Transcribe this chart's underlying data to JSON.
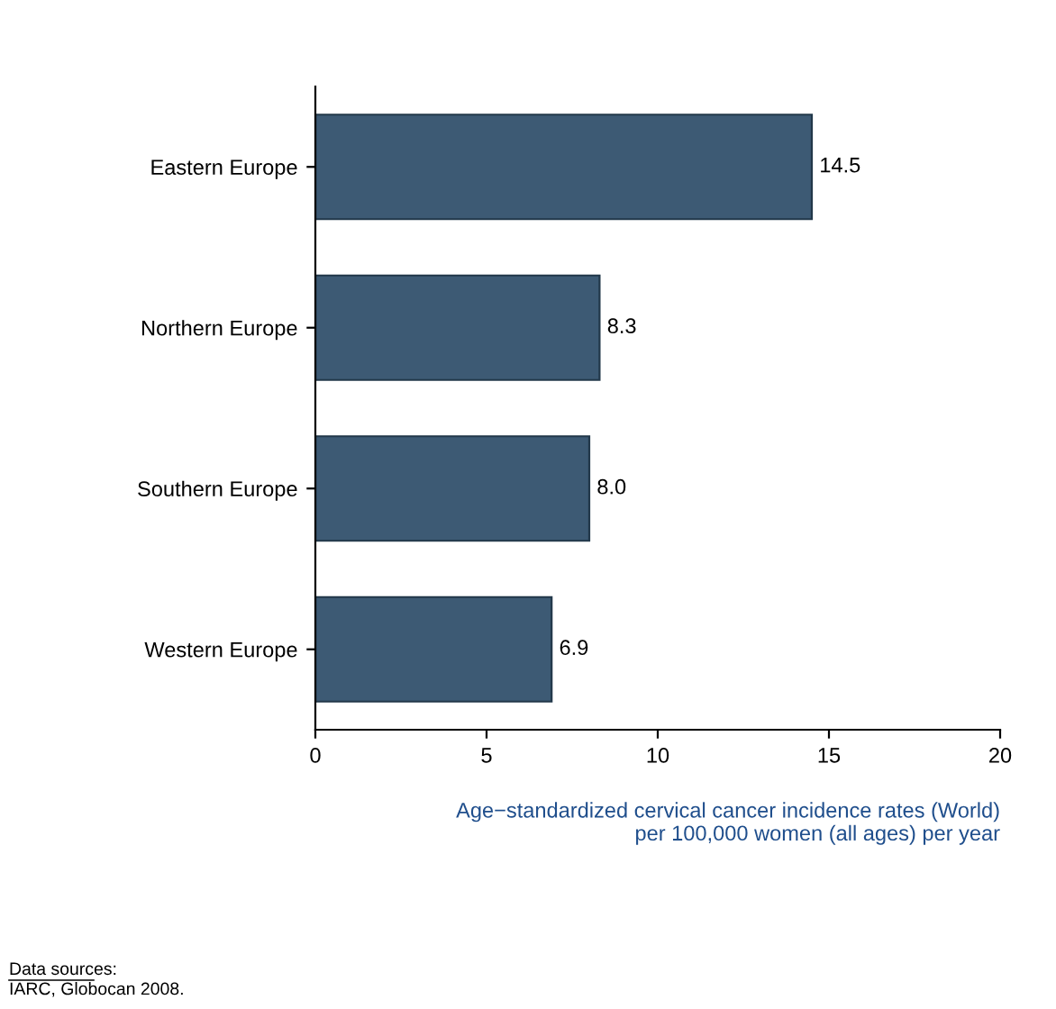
{
  "chart_data": {
    "type": "bar",
    "orientation": "horizontal",
    "categories": [
      "Eastern Europe",
      "Northern Europe",
      "Southern Europe",
      "Western Europe"
    ],
    "values": [
      14.5,
      8.3,
      8.0,
      6.9
    ],
    "value_labels": [
      "14.5",
      "8.3",
      "8.0",
      "6.9"
    ],
    "color": "#3d5a74",
    "xlim": [
      0,
      20
    ],
    "xticks": [
      0,
      5,
      10,
      15,
      20
    ],
    "xlabel": "Age−standardized cervical cancer incidence rates (World)\nper 100,000 women (all ages) per year",
    "grid": false,
    "legend": false,
    "annotations": [
      "Data sources:",
      "IARC, Globocan 2008."
    ]
  }
}
